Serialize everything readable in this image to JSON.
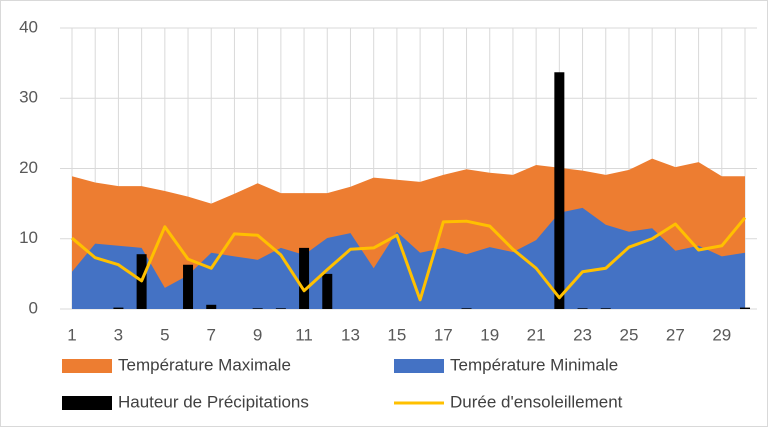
{
  "chart_data": {
    "type": "combo",
    "categories": [
      1,
      null,
      3,
      null,
      5,
      null,
      7,
      null,
      9,
      null,
      11,
      null,
      13,
      null,
      15,
      null,
      17,
      null,
      19,
      null,
      21,
      null,
      23,
      null,
      25,
      null,
      27,
      null,
      29,
      null
    ],
    "ylim": [
      0,
      40
    ],
    "yticks": [
      0,
      10,
      20,
      30,
      40
    ],
    "grid": true,
    "legend": "bottom",
    "series": [
      {
        "name": "Température Maximale",
        "kind": "area",
        "color": "#ed7d31",
        "values": [
          18.9,
          18.0,
          17.5,
          17.5,
          16.8,
          16.0,
          15.0,
          16.4,
          17.9,
          16.5,
          16.5,
          16.5,
          17.4,
          18.7,
          18.4,
          18.1,
          19.1,
          19.9,
          19.4,
          19.1,
          20.5,
          20.1,
          19.7,
          19.1,
          19.8,
          21.4,
          20.2,
          20.9,
          18.9,
          18.9
        ]
      },
      {
        "name": "Température Minimale",
        "kind": "area",
        "color": "#4472c4",
        "values": [
          5.3,
          9.3,
          9.0,
          8.7,
          3.0,
          4.8,
          8.0,
          7.5,
          7.0,
          8.7,
          7.7,
          10.1,
          10.8,
          5.8,
          11.0,
          8.0,
          8.7,
          7.8,
          8.8,
          8.1,
          9.8,
          13.7,
          14.4,
          12.0,
          11.0,
          11.5,
          8.3,
          9.0,
          7.5,
          8.0
        ]
      },
      {
        "name": "Hauteur de Précipitations",
        "kind": "bar",
        "color": "#000000",
        "values": [
          0,
          0,
          0.2,
          7.8,
          0,
          6.3,
          0.6,
          0,
          0.1,
          0.1,
          8.7,
          5.0,
          0,
          0,
          0,
          0,
          0,
          0.1,
          0,
          0,
          0,
          33.7,
          0.1,
          0.1,
          0,
          0,
          0,
          0,
          0,
          0.2
        ]
      },
      {
        "name": "Durée d'ensoleillement",
        "kind": "line",
        "color": "#ffc000",
        "values": [
          10.1,
          7.3,
          6.3,
          4.0,
          11.7,
          7.1,
          5.8,
          10.7,
          10.5,
          7.7,
          2.6,
          5.6,
          8.5,
          8.7,
          10.5,
          1.3,
          12.4,
          12.5,
          11.8,
          8.5,
          5.8,
          1.6,
          5.3,
          5.8,
          8.8,
          10.0,
          12.1,
          8.4,
          9.0,
          13.0
        ]
      }
    ]
  }
}
